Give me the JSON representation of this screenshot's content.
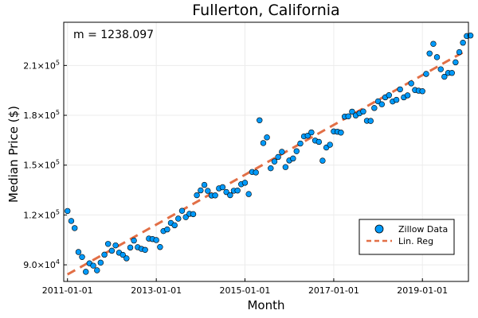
{
  "chart_data": {
    "type": "scatter",
    "title": "Fullerton, California",
    "xlabel": "Month",
    "ylabel": "Median Price ($)",
    "annotation": "m = 1238.097",
    "grid": true,
    "legend_position": "bottom-right",
    "xlim": [
      "2010-12-01",
      "2020-01-15"
    ],
    "ylim": [
      80000,
      236000
    ],
    "x_ticks": [
      {
        "date": "2011-01-01",
        "label": "2011-01-01"
      },
      {
        "date": "2013-01-01",
        "label": "2013-01-01"
      },
      {
        "date": "2015-01-01",
        "label": "2015-01-01"
      },
      {
        "date": "2017-01-01",
        "label": "2017-01-01"
      },
      {
        "date": "2019-01-01",
        "label": "2019-01-01"
      }
    ],
    "y_ticks": [
      {
        "value": 90000,
        "base": "9.0×10",
        "exp": "4"
      },
      {
        "value": 120000,
        "base": "1.2×10",
        "exp": "5"
      },
      {
        "value": 150000,
        "base": "1.5×10",
        "exp": "5"
      },
      {
        "value": 180000,
        "base": "1.8×10",
        "exp": "5"
      },
      {
        "value": 210000,
        "base": "2.1×10",
        "exp": "5"
      }
    ],
    "series": [
      {
        "name": "Zillow Data",
        "kind": "scatter",
        "color": "#009AFA",
        "x_start": "2011-01",
        "y": [
          122400,
          116400,
          112100,
          97700,
          94700,
          85800,
          90900,
          89500,
          86700,
          91300,
          96100,
          102600,
          98500,
          101700,
          97300,
          96000,
          93900,
          100400,
          104600,
          100600,
          99600,
          99000,
          105800,
          105500,
          104900,
          100700,
          110300,
          111300,
          115200,
          113800,
          117800,
          122500,
          118700,
          120700,
          120500,
          131900,
          134800,
          138100,
          134500,
          131700,
          131800,
          136000,
          136700,
          133800,
          131900,
          134600,
          134700,
          138500,
          139400,
          132600,
          145900,
          145600,
          177000,
          163300,
          166700,
          148100,
          152200,
          154900,
          158000,
          148800,
          152800,
          154000,
          158400,
          163000,
          167300,
          167700,
          169700,
          164800,
          164000,
          152700,
          160600,
          162300,
          170300,
          170100,
          169600,
          179200,
          179400,
          182200,
          179900,
          181200,
          182300,
          176700,
          176600,
          184400,
          188400,
          186600,
          190800,
          192100,
          188300,
          189300,
          195600,
          190800,
          192000,
          199200,
          195200,
          194800,
          194500,
          204900,
          217200,
          223000,
          215000,
          207700,
          203200,
          205500,
          205500,
          211900,
          218000,
          223700,
          227700,
          228000
        ]
      },
      {
        "name": "Lin. Reg",
        "kind": "line",
        "color": "#E26F46",
        "x": [
          "2011-01-01",
          "2019-12-01"
        ],
        "y": [
          84200,
          217900
        ]
      }
    ]
  }
}
